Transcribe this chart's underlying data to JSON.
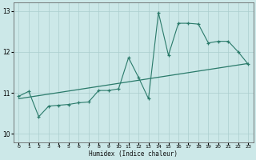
{
  "xlabel": "Humidex (Indice chaleur)",
  "ylabel": "",
  "xlim": [
    -0.5,
    23.5
  ],
  "ylim": [
    9.8,
    13.2
  ],
  "yticks": [
    10,
    11,
    12,
    13
  ],
  "xticks": [
    0,
    1,
    2,
    3,
    4,
    5,
    6,
    7,
    8,
    9,
    10,
    11,
    12,
    13,
    14,
    15,
    16,
    17,
    18,
    19,
    20,
    21,
    22,
    23
  ],
  "background_color": "#cce8e8",
  "grid_color": "#aacece",
  "line_color": "#2a7a6a",
  "scatter_x": [
    0,
    1,
    2,
    3,
    4,
    5,
    6,
    7,
    8,
    9,
    10,
    11,
    12,
    13,
    14,
    15,
    16,
    17,
    18,
    19,
    20,
    21,
    22,
    23
  ],
  "scatter_y": [
    10.92,
    11.04,
    10.42,
    10.68,
    10.7,
    10.72,
    10.76,
    10.78,
    11.06,
    11.06,
    11.1,
    11.86,
    11.38,
    10.86,
    12.96,
    11.92,
    12.7,
    12.7,
    12.68,
    12.22,
    12.26,
    12.26,
    12.0,
    11.7
  ],
  "trend_x": [
    0,
    23
  ],
  "trend_y": [
    10.86,
    11.72
  ]
}
